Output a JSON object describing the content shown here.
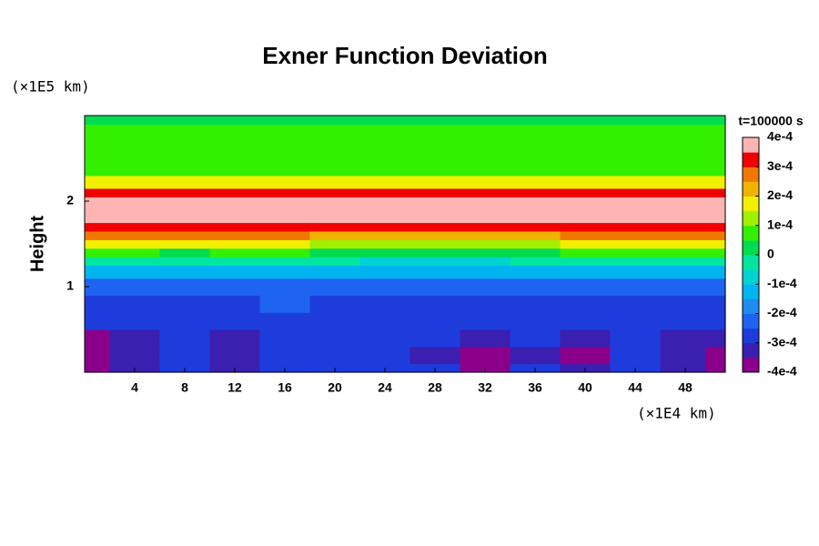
{
  "chart_data": {
    "type": "contour",
    "title": "Exner Function Deviation",
    "y_unit": "(×1E5 km)",
    "x_unit": "(×1E4 km)",
    "y_label": "Height",
    "colorbar_title": "t=100000 s",
    "xlim": [
      0,
      51.2
    ],
    "ylim": [
      0,
      3
    ],
    "xticks": [
      4,
      8,
      12,
      16,
      20,
      24,
      28,
      32,
      36,
      40,
      44,
      48
    ],
    "yticks": [
      1,
      2
    ],
    "x": [
      0,
      4,
      8,
      12,
      16,
      20,
      24,
      28,
      32,
      36,
      40,
      44,
      48,
      51.2
    ],
    "y": [
      0,
      0.2,
      0.4,
      0.6,
      0.8,
      1.0,
      1.2,
      1.3,
      1.4,
      1.5,
      1.6,
      1.7,
      1.8,
      2.0,
      2.1,
      2.2,
      2.4,
      2.6,
      2.8,
      3.0
    ],
    "z": [
      [
        -0.00039,
        -0.00031,
        -0.00028,
        -0.00032,
        -0.00028,
        -0.00027,
        -0.00027,
        -0.0003,
        -0.00037,
        -0.0003,
        -0.00035,
        -0.00028,
        -0.00032,
        -0.00038
      ],
      [
        -0.00042,
        -0.00034,
        -0.0003,
        -0.00035,
        -0.0003,
        -0.00028,
        -0.00029,
        -0.00033,
        -0.0004,
        -0.00032,
        -0.00038,
        -0.0003,
        -0.00035,
        -0.00041
      ],
      [
        -0.00036,
        -0.00035,
        -0.0003,
        -0.00033,
        -0.00029,
        -0.00028,
        -0.00028,
        -0.0003,
        -0.00033,
        -0.0003,
        -0.00032,
        -0.0003,
        -0.00031,
        -0.00035
      ],
      [
        -0.0003,
        -0.00029,
        -0.00028,
        -0.00029,
        -0.00028,
        -0.00029,
        -0.00028,
        -0.00027,
        -0.00028,
        -0.00029,
        -0.00029,
        -0.00028,
        -0.00029,
        -0.0003
      ],
      [
        -0.00027,
        -0.00026,
        -0.00027,
        -0.00026,
        -0.00025,
        -0.00027,
        -0.00026,
        -0.00026,
        -0.00027,
        -0.00026,
        -0.00027,
        -0.00026,
        -0.00026,
        -0.00027
      ],
      [
        -0.00024,
        -0.00024,
        -0.00025,
        -0.00024,
        -0.00023,
        -0.00024,
        -0.00024,
        -0.00025,
        -0.00024,
        -0.00024,
        -0.00025,
        -0.00024,
        -0.00024,
        -0.00024
      ],
      [
        -0.00012,
        -0.00013,
        -0.00012,
        -0.00011,
        -0.00012,
        -0.00013,
        -0.00014,
        -0.00015,
        -0.00014,
        -0.00013,
        -0.00012,
        -0.00012,
        -0.00011,
        -0.00012
      ],
      [
        -4e-05,
        -4e-05,
        -5e-05,
        -4e-05,
        -4e-05,
        -5e-05,
        -6e-05,
        -7e-05,
        -6e-05,
        -5e-05,
        -4e-05,
        -4e-05,
        -4e-05,
        -4e-05
      ],
      [
        5e-05,
        5e-05,
        4e-05,
        5e-05,
        5e-05,
        4e-05,
        3e-05,
        2e-05,
        3e-05,
        4e-05,
        5e-05,
        5e-05,
        5e-05,
        5e-05
      ],
      [
        0.00016,
        0.00016,
        0.00015,
        0.00016,
        0.00015,
        0.00014,
        0.00012,
        0.00011,
        0.00012,
        0.00014,
        0.00015,
        0.00016,
        0.00016,
        0.00016
      ],
      [
        0.00026,
        0.00026,
        0.00025,
        0.00026,
        0.00025,
        0.00024,
        0.00022,
        0.0002,
        0.00021,
        0.00023,
        0.00025,
        0.00026,
        0.00026,
        0.00026
      ],
      [
        0.00034,
        0.00034,
        0.00033,
        0.00034,
        0.00033,
        0.00032,
        0.00031,
        0.0003,
        0.00031,
        0.00032,
        0.00033,
        0.00034,
        0.00034,
        0.00034
      ],
      [
        0.00042,
        0.00042,
        0.00042,
        0.00042,
        0.00042,
        0.00041,
        0.00041,
        0.0004,
        0.00041,
        0.00041,
        0.00042,
        0.00042,
        0.00042,
        0.00042
      ],
      [
        0.00042,
        0.00042,
        0.00042,
        0.00042,
        0.00042,
        0.00042,
        0.00042,
        0.00042,
        0.00042,
        0.00042,
        0.00042,
        0.00042,
        0.00042,
        0.00042
      ],
      [
        0.00033,
        0.00033,
        0.00033,
        0.00033,
        0.00033,
        0.00032,
        0.00032,
        0.00032,
        0.00032,
        0.00033,
        0.00033,
        0.00033,
        0.00033,
        0.00033
      ],
      [
        0.00015,
        0.00015,
        0.00015,
        0.00015,
        0.00015,
        0.00015,
        0.00015,
        0.00015,
        0.00015,
        0.00015,
        0.00015,
        0.00015,
        0.00015,
        0.00015
      ],
      [
        9e-05,
        9e-05,
        9e-05,
        9e-05,
        9e-05,
        9e-05,
        9e-05,
        9e-05,
        9e-05,
        9e-05,
        9e-05,
        9e-05,
        9e-05,
        9e-05
      ],
      [
        7e-05,
        7e-05,
        7e-05,
        7e-05,
        7e-05,
        7e-05,
        7e-05,
        7e-05,
        7e-05,
        7e-05,
        7e-05,
        7e-05,
        7e-05,
        7e-05
      ],
      [
        6e-05,
        6e-05,
        6e-05,
        6e-05,
        6e-05,
        6e-05,
        6e-05,
        6e-05,
        6e-05,
        6e-05,
        6e-05,
        6e-05,
        6e-05,
        6e-05
      ],
      [
        4e-05,
        4e-05,
        4e-05,
        4e-05,
        4e-05,
        4e-05,
        4e-05,
        4e-05,
        4e-05,
        4e-05,
        4e-05,
        4e-05,
        4e-05,
        4e-05
      ]
    ],
    "levels": [
      -0.0004,
      -0.00035,
      -0.0003,
      -0.00025,
      -0.0002,
      -0.00015,
      -0.0001,
      -5e-05,
      0,
      5e-05,
      0.0001,
      0.00015,
      0.0002,
      0.00025,
      0.0003,
      0.00035,
      0.0004
    ],
    "colors": [
      "#8b008b",
      "#3a1fb0",
      "#1e3cdc",
      "#1e64f0",
      "#1e8cf0",
      "#00b4f0",
      "#00d2d2",
      "#00e6a0",
      "#00dc50",
      "#32f000",
      "#a0f000",
      "#f0f000",
      "#f0b400",
      "#f07800",
      "#f00000",
      "#ffb4b4"
    ],
    "cticks": [
      {
        "value": 0.0004,
        "label": "4e-4"
      },
      {
        "value": 0.0003,
        "label": "3e-4"
      },
      {
        "value": 0.0002,
        "label": "2e-4"
      },
      {
        "value": 0.0001,
        "label": "1e-4"
      },
      0,
      {
        "value": -0.0001,
        "label": "-1e-4"
      },
      {
        "value": -0.0002,
        "label": "-2e-4"
      },
      {
        "value": -0.0003,
        "label": "-3e-4"
      },
      {
        "value": -0.0004,
        "label": "-4e-4"
      }
    ]
  }
}
